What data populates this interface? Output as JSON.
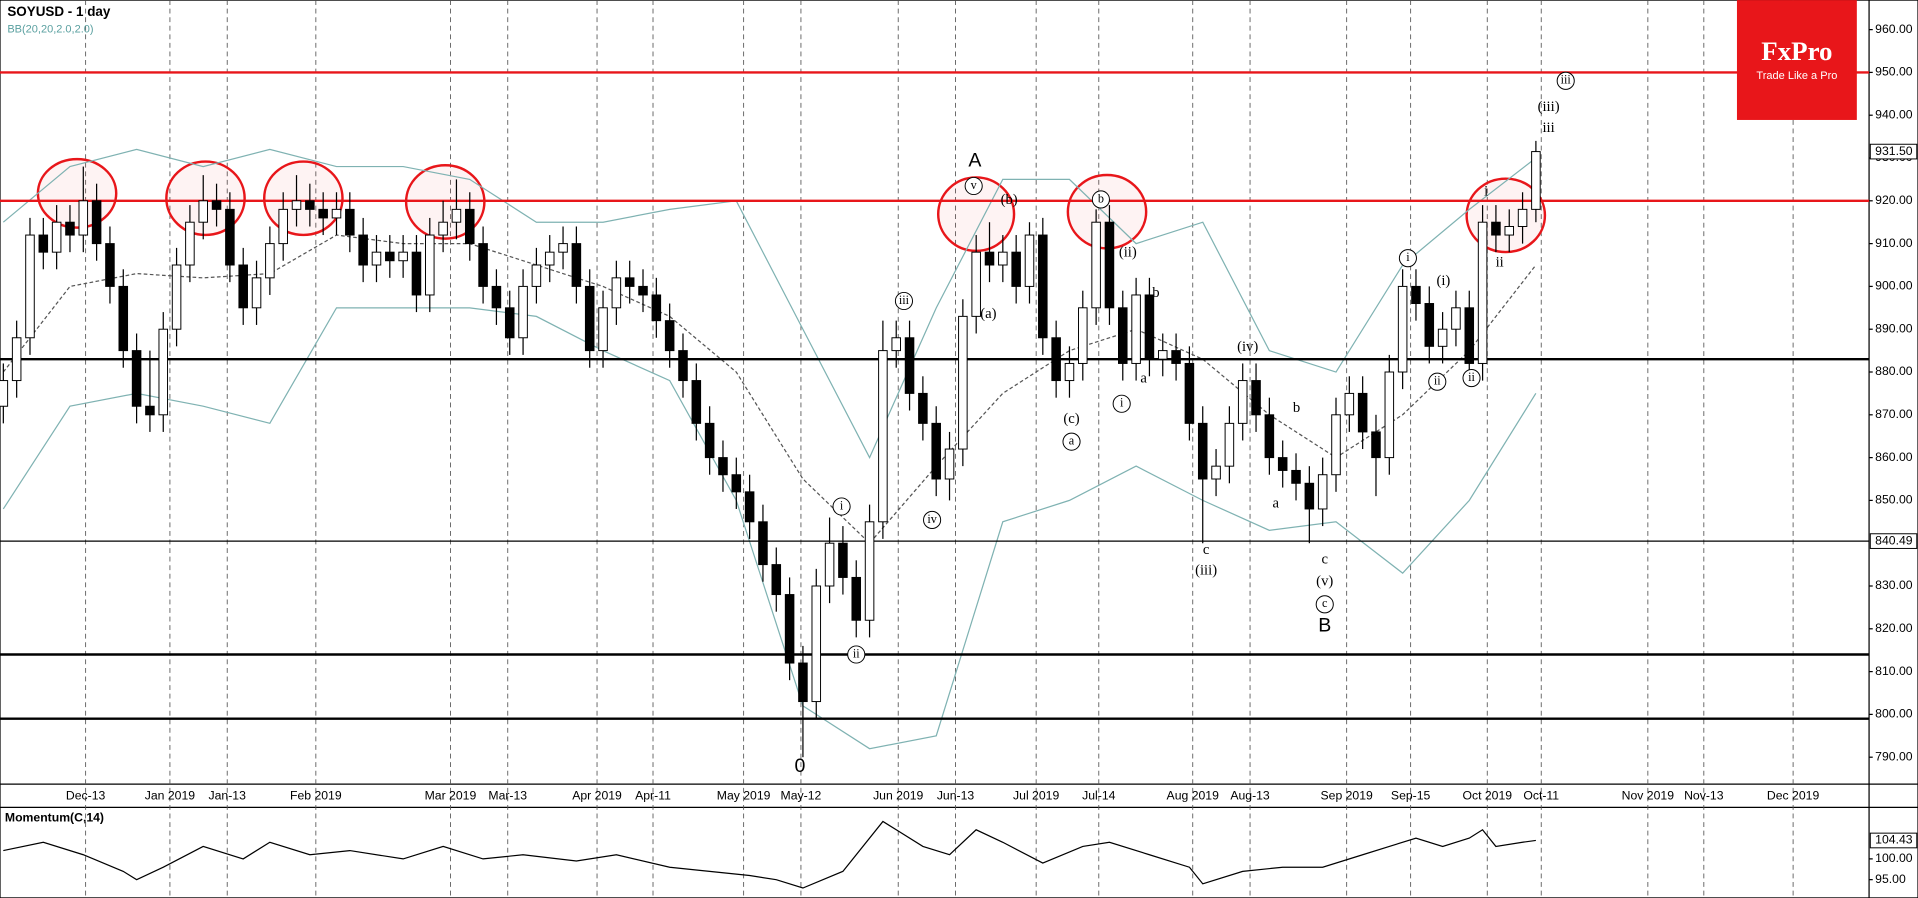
{
  "chart_data": [
    {
      "type": "candlestick",
      "title": "SOYUSD - 1 day",
      "subtitle": "BB(20,20,2.0,2.0)",
      "x": [
        0,
        2,
        4,
        6,
        8,
        10,
        12,
        14,
        16,
        18,
        20,
        22,
        24,
        26,
        28,
        30,
        32,
        34,
        36,
        38,
        40,
        42,
        44,
        46,
        48,
        50,
        52,
        54,
        56,
        58,
        60,
        62,
        64,
        66,
        68,
        70,
        72,
        74,
        76,
        78,
        80,
        82,
        84,
        86,
        88,
        90,
        92,
        94,
        96,
        98,
        100,
        102,
        104,
        106,
        108,
        110,
        112,
        114,
        116,
        118,
        120,
        122,
        124,
        126,
        128,
        130,
        132,
        134,
        136,
        138,
        140,
        142,
        144,
        146,
        148,
        150,
        152,
        154,
        156,
        158,
        160,
        162,
        164,
        166,
        168,
        170,
        172,
        174,
        176,
        178,
        180,
        182,
        184,
        186,
        188,
        190,
        192,
        194,
        196,
        198,
        200,
        202,
        204,
        206,
        208,
        210,
        212,
        214,
        216,
        218,
        220,
        222,
        224,
        226,
        228,
        230
      ],
      "open": [
        872,
        878,
        888,
        912,
        908,
        915,
        912,
        920,
        910,
        900,
        885,
        872,
        870,
        890,
        905,
        915,
        920,
        918,
        905,
        895,
        902,
        910,
        918,
        920,
        918,
        916,
        918,
        912,
        905,
        908,
        906,
        908,
        898,
        912,
        915,
        918,
        910,
        900,
        895,
        888,
        900,
        905,
        908,
        910,
        900,
        885,
        895,
        902,
        900,
        898,
        892,
        885,
        878,
        868,
        860,
        856,
        852,
        845,
        835,
        828,
        812,
        803,
        830,
        840,
        832,
        822,
        845,
        885,
        888,
        875,
        868,
        855,
        862,
        893,
        908,
        905,
        908,
        900,
        912,
        888,
        878,
        882,
        895,
        915,
        895,
        882,
        898,
        883,
        885,
        882,
        868,
        855,
        858,
        868,
        878,
        870,
        860,
        857,
        854,
        848,
        856,
        870,
        875,
        866,
        860,
        880,
        900,
        896,
        886,
        890,
        895,
        882,
        915,
        912,
        914,
        918
      ],
      "high": [
        882,
        892,
        916,
        916,
        919,
        919,
        928,
        924,
        914,
        904,
        889,
        885,
        894,
        909,
        919,
        926,
        924,
        922,
        909,
        906,
        914,
        922,
        926,
        924,
        922,
        922,
        922,
        916,
        912,
        912,
        912,
        912,
        916,
        920,
        925,
        922,
        914,
        904,
        899,
        904,
        909,
        912,
        914,
        914,
        904,
        899,
        906,
        906,
        904,
        902,
        896,
        889,
        882,
        872,
        864,
        860,
        856,
        849,
        839,
        832,
        816,
        834,
        846,
        844,
        836,
        849,
        892,
        892,
        892,
        879,
        872,
        866,
        897,
        912,
        915,
        912,
        912,
        915,
        916,
        892,
        886,
        899,
        918,
        919,
        899,
        902,
        902,
        889,
        889,
        886,
        872,
        862,
        872,
        882,
        882,
        874,
        864,
        861,
        858,
        860,
        874,
        879,
        879,
        870,
        884,
        904,
        904,
        900,
        894,
        899,
        899,
        919,
        919,
        918,
        922,
        934
      ],
      "low": [
        868,
        874,
        884,
        904,
        904,
        908,
        908,
        906,
        896,
        881,
        868,
        866,
        866,
        886,
        901,
        911,
        914,
        901,
        891,
        891,
        898,
        906,
        914,
        914,
        912,
        912,
        908,
        901,
        901,
        902,
        902,
        894,
        894,
        908,
        911,
        906,
        896,
        891,
        884,
        884,
        896,
        901,
        904,
        896,
        881,
        881,
        891,
        896,
        894,
        888,
        881,
        874,
        864,
        856,
        852,
        848,
        841,
        831,
        824,
        808,
        790,
        799,
        826,
        828,
        818,
        818,
        841,
        881,
        871,
        864,
        851,
        850,
        858,
        889,
        901,
        901,
        896,
        896,
        884,
        874,
        874,
        878,
        891,
        891,
        878,
        878,
        879,
        879,
        878,
        864,
        840,
        851,
        854,
        864,
        866,
        856,
        853,
        850,
        840,
        844,
        852,
        866,
        862,
        851,
        856,
        876,
        892,
        882,
        882,
        886,
        878,
        878,
        908,
        908,
        910,
        915
      ],
      "close": [
        878,
        888,
        912,
        908,
        915,
        912,
        920,
        910,
        900,
        885,
        872,
        870,
        890,
        905,
        915,
        920,
        918,
        905,
        895,
        902,
        910,
        918,
        920,
        918,
        916,
        918,
        912,
        905,
        908,
        906,
        908,
        898,
        912,
        915,
        918,
        910,
        900,
        895,
        888,
        900,
        905,
        908,
        910,
        900,
        885,
        895,
        902,
        900,
        898,
        892,
        885,
        878,
        868,
        860,
        856,
        852,
        845,
        835,
        828,
        812,
        803,
        830,
        840,
        832,
        822,
        845,
        885,
        888,
        875,
        868,
        855,
        862,
        893,
        908,
        905,
        908,
        900,
        912,
        888,
        878,
        882,
        895,
        915,
        895,
        882,
        898,
        883,
        885,
        882,
        868,
        855,
        858,
        868,
        878,
        870,
        860,
        857,
        854,
        848,
        856,
        870,
        875,
        866,
        860,
        880,
        900,
        896,
        886,
        890,
        895,
        882,
        915,
        912,
        914,
        918,
        931.5
      ],
      "up_color": "#ffffff",
      "down_color": "#000000",
      "bands": {
        "x": [
          0,
          10,
          20,
          30,
          40,
          50,
          60,
          70,
          80,
          90,
          100,
          110,
          120,
          130,
          140,
          150,
          160,
          170,
          180,
          190,
          200,
          210,
          220,
          230
        ],
        "upper": [
          915,
          928,
          932,
          928,
          932,
          928,
          928,
          925,
          915,
          915,
          918,
          920,
          890,
          860,
          895,
          925,
          925,
          910,
          915,
          885,
          880,
          905,
          918,
          930
        ],
        "middle": [
          880,
          900,
          903,
          902,
          903,
          912,
          910,
          910,
          905,
          900,
          893,
          880,
          855,
          840,
          858,
          875,
          885,
          890,
          883,
          870,
          860,
          870,
          885,
          905
        ],
        "lower": [
          848,
          872,
          875,
          872,
          868,
          895,
          895,
          895,
          893,
          885,
          878,
          850,
          802,
          792,
          795,
          845,
          850,
          858,
          850,
          843,
          845,
          833,
          850,
          875
        ],
        "color": "#7fb2b2",
        "middle_color": "#555555"
      },
      "xlim": [
        -0.5,
        280
      ],
      "xticks": [
        {
          "value": 12.35,
          "label": "Dec-13"
        },
        {
          "value": 25.0,
          "label": "Jan 2019"
        },
        {
          "value": 33.6,
          "label": "Jan-13"
        },
        {
          "value": 46.9,
          "label": "Feb 2019"
        },
        {
          "value": 67.1,
          "label": "Mar 2019"
        },
        {
          "value": 75.7,
          "label": "Mar-13"
        },
        {
          "value": 89.1,
          "label": "Apr 2019"
        },
        {
          "value": 97.5,
          "label": "Apr-11"
        },
        {
          "value": 111.1,
          "label": "May 2019"
        },
        {
          "value": 119.7,
          "label": "May-12"
        },
        {
          "value": 134.3,
          "label": "Jun 2019"
        },
        {
          "value": 142.9,
          "label": "Jun-13"
        },
        {
          "value": 155.0,
          "label": "Jul 2019"
        },
        {
          "value": 164.4,
          "label": "Jul-14"
        },
        {
          "value": 178.5,
          "label": "Aug 2019"
        },
        {
          "value": 187.1,
          "label": "Aug-13"
        },
        {
          "value": 201.6,
          "label": "Sep 2019"
        },
        {
          "value": 211.2,
          "label": "Sep-15"
        },
        {
          "value": 222.7,
          "label": "Oct 2019"
        },
        {
          "value": 230.8,
          "label": "Oct-11"
        },
        {
          "value": 246.8,
          "label": "Nov 2019"
        },
        {
          "value": 255.2,
          "label": "Nov-13"
        },
        {
          "value": 268.6,
          "label": "Dec 2019"
        }
      ],
      "ylim": [
        783.7,
        966.9
      ],
      "yticks": [
        {
          "value": 790,
          "label": "790.00"
        },
        {
          "value": 800,
          "label": "800.00"
        },
        {
          "value": 810,
          "label": "810.00"
        },
        {
          "value": 820,
          "label": "820.00"
        },
        {
          "value": 830,
          "label": "830.00"
        },
        {
          "value": 850,
          "label": "850.00"
        },
        {
          "value": 860,
          "label": "860.00"
        },
        {
          "value": 870,
          "label": "870.00"
        },
        {
          "value": 880,
          "label": "880.00"
        },
        {
          "value": 890,
          "label": "890.00"
        },
        {
          "value": 900,
          "label": "900.00"
        },
        {
          "value": 910,
          "label": "910.00"
        },
        {
          "value": 920,
          "label": "920.00"
        },
        {
          "value": 930,
          "label": "930.00"
        },
        {
          "value": 940,
          "label": "940.00"
        },
        {
          "value": 950,
          "label": "950.00"
        },
        {
          "value": 960,
          "label": "960.00"
        }
      ],
      "levels": [
        {
          "value": 950,
          "color": "#e8161a",
          "width": 2
        },
        {
          "value": 920,
          "color": "#e8161a",
          "width": 2
        },
        {
          "value": 883,
          "color": "#000000",
          "width": 2
        },
        {
          "value": 814,
          "color": "#000000",
          "width": 2
        },
        {
          "value": 799,
          "color": "#000000",
          "width": 2
        },
        {
          "value": 840.49,
          "label": "840.49",
          "color": "#000000",
          "width": 1
        }
      ],
      "last_tag": {
        "value": 931.5,
        "label": "931.50"
      },
      "annotations": [
        "A",
        "v",
        "(b)",
        "b",
        "(a)",
        "iii",
        "iv",
        "i",
        "ii",
        "0",
        "(c)",
        "a",
        "(ii)",
        "i",
        "b",
        "a",
        "(iv)",
        "c",
        "(iii)",
        "b",
        "a",
        "c",
        "(v)",
        "c",
        "B",
        "i",
        "(i)",
        "ii",
        "ii",
        "i",
        "ii",
        "(iii)",
        "iii",
        "iii"
      ],
      "logo": {
        "brand": "FxPro",
        "tagline": "Trade Like a Pro"
      }
    },
    {
      "type": "line",
      "title": "Momentum(C,14)",
      "x": [
        0,
        6,
        12,
        18,
        20,
        24,
        30,
        36,
        40,
        46,
        52,
        60,
        66,
        72,
        78,
        86,
        92,
        100,
        106,
        112,
        116,
        120,
        126,
        132,
        134,
        138,
        142,
        146,
        150,
        156,
        162,
        166,
        172,
        178,
        180,
        186,
        192,
        198,
        204,
        208,
        212,
        216,
        220,
        222,
        224,
        228,
        230
      ],
      "values": [
        102,
        104,
        101,
        97,
        95,
        98,
        103,
        100,
        104,
        101,
        102,
        100,
        103,
        100,
        101,
        99.5,
        101,
        98,
        97,
        96,
        95,
        93,
        97,
        109,
        107,
        103,
        101,
        107,
        104,
        99,
        103,
        104,
        101,
        98,
        94,
        97,
        98,
        98,
        101,
        103,
        105,
        103,
        105,
        107,
        103,
        104,
        104.43
      ],
      "color": "#000000",
      "ylim": [
        90.6,
        112.1
      ],
      "yticks": [
        {
          "value": 95,
          "label": "95.00"
        },
        {
          "value": 100,
          "label": "100.00"
        }
      ],
      "last_tag": {
        "value": 104.43,
        "label": "104.43"
      }
    }
  ]
}
